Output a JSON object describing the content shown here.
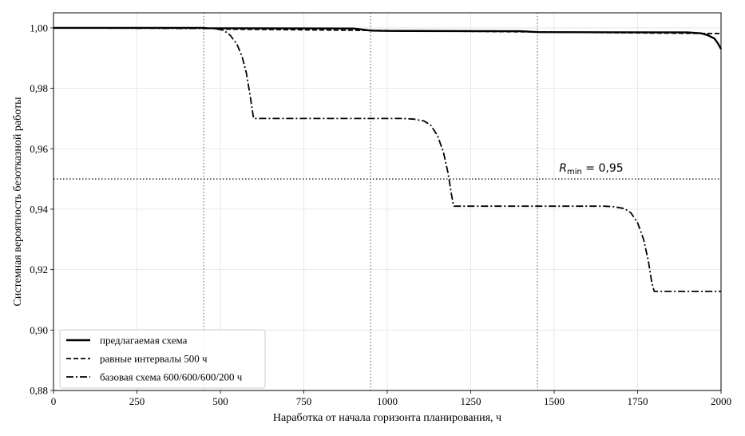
{
  "chart_data": {
    "type": "line",
    "title": "",
    "xlabel": "Наработка от начала горизонта планирования, ч",
    "ylabel": "Системная вероятность безотказной работы",
    "xlim": [
      0,
      2000
    ],
    "ylim": [
      0.88,
      1.005
    ],
    "x_ticks": [
      0,
      250,
      500,
      750,
      1000,
      1250,
      1500,
      1750,
      2000
    ],
    "x_tick_labels": [
      "0",
      "250",
      "500",
      "750",
      "1000",
      "1250",
      "1500",
      "1750",
      "2000"
    ],
    "y_ticks": [
      0.88,
      0.9,
      0.92,
      0.94,
      0.96,
      0.98,
      1.0
    ],
    "y_tick_labels": [
      "0,88",
      "0,90",
      "0,92",
      "0,94",
      "0,96",
      "0,98",
      "1,00"
    ],
    "grid": true,
    "legend_position": "lower-left",
    "series": [
      {
        "name": "предлагаемая схема",
        "style": "solid",
        "color": "#000000",
        "points": [
          [
            0,
            1.0
          ],
          [
            440,
            1.0
          ],
          [
            460,
            0.9999
          ],
          [
            900,
            0.9998
          ],
          [
            950,
            0.9991
          ],
          [
            1000,
            0.999
          ],
          [
            1400,
            0.9989
          ],
          [
            1450,
            0.9986
          ],
          [
            1900,
            0.9985
          ],
          [
            1940,
            0.9982
          ],
          [
            1960,
            0.9976
          ],
          [
            1980,
            0.9965
          ],
          [
            1990,
            0.995
          ],
          [
            2000,
            0.993
          ]
        ]
      },
      {
        "name": "равные интервалы 500 ч",
        "style": "dashed",
        "color": "#000000",
        "points": [
          [
            0,
            1.0
          ],
          [
            450,
            1.0
          ],
          [
            500,
            0.9996
          ],
          [
            1000,
            0.9991
          ],
          [
            1500,
            0.9986
          ],
          [
            2000,
            0.9981
          ]
        ]
      },
      {
        "name": "базовая схема 600/600/600/200 ч",
        "style": "dashdot",
        "color": "#000000",
        "points": [
          [
            0,
            1.0
          ],
          [
            480,
            0.9998
          ],
          [
            510,
            0.9992
          ],
          [
            530,
            0.9975
          ],
          [
            550,
            0.9945
          ],
          [
            565,
            0.9905
          ],
          [
            578,
            0.985
          ],
          [
            590,
            0.977
          ],
          [
            598,
            0.971
          ],
          [
            600,
            0.97
          ],
          [
            1050,
            0.97
          ],
          [
            1080,
            0.9698
          ],
          [
            1110,
            0.9692
          ],
          [
            1130,
            0.9678
          ],
          [
            1150,
            0.9645
          ],
          [
            1168,
            0.959
          ],
          [
            1182,
            0.952
          ],
          [
            1192,
            0.945
          ],
          [
            1198,
            0.9415
          ],
          [
            1200,
            0.941
          ],
          [
            1650,
            0.941
          ],
          [
            1680,
            0.9408
          ],
          [
            1710,
            0.9402
          ],
          [
            1730,
            0.9388
          ],
          [
            1750,
            0.9355
          ],
          [
            1768,
            0.93
          ],
          [
            1782,
            0.923
          ],
          [
            1792,
            0.916
          ],
          [
            1798,
            0.9135
          ],
          [
            1800,
            0.9128
          ],
          [
            2000,
            0.9128
          ]
        ]
      }
    ],
    "reference_lines": [
      {
        "orientation": "horizontal",
        "value": 0.95,
        "style": "dotted",
        "label_main": "R",
        "label_sub": "min",
        "label_rest": " = 0,95",
        "label_x": 1515,
        "label_y": 0.9524
      },
      {
        "orientation": "vertical",
        "value": 450,
        "style": "dotted"
      },
      {
        "orientation": "vertical",
        "value": 950,
        "style": "dotted"
      },
      {
        "orientation": "vertical",
        "value": 1450,
        "style": "dotted"
      }
    ]
  }
}
